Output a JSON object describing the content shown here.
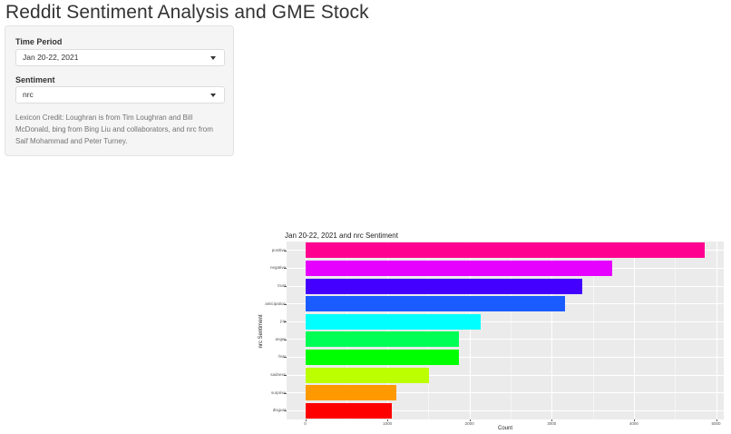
{
  "page": {
    "title": "Reddit Sentiment Analysis and GME Stock"
  },
  "sidebar": {
    "time_period": {
      "label": "Time Period",
      "value": "Jan 20-22, 2021"
    },
    "sentiment": {
      "label": "Sentiment",
      "value": "nrc"
    },
    "credit": "Lexicon Credit: Loughran is from Tim Loughran and Bill McDonald, bing from Bing Liu and collaborators, and nrc from Saif Mohammad and Peter Turney."
  },
  "chart_data": {
    "type": "bar",
    "orientation": "horizontal",
    "title": "Jan 20-22, 2021 and nrc Sentiment",
    "xlabel": "Count",
    "ylabel": "nrc Sentiment",
    "categories": [
      "positive",
      "negative",
      "trust",
      "anticipation",
      "joy",
      "anger",
      "fear",
      "sadness",
      "surprise",
      "disgust"
    ],
    "values": [
      4860,
      3735,
      3370,
      3165,
      2135,
      1870,
      1870,
      1505,
      1110,
      1055
    ],
    "colors": [
      "#FF0090",
      "#E600FF",
      "#4400FF",
      "#1A5CFF",
      "#00FFFF",
      "#00FF55",
      "#00FF00",
      "#BBFF00",
      "#FF9900",
      "#FF0000"
    ],
    "xticks": [
      "0",
      "1000",
      "2000",
      "3000",
      "4000",
      "5000"
    ],
    "xlim": [
      -230,
      5100
    ],
    "grid": true,
    "legend": "none"
  }
}
